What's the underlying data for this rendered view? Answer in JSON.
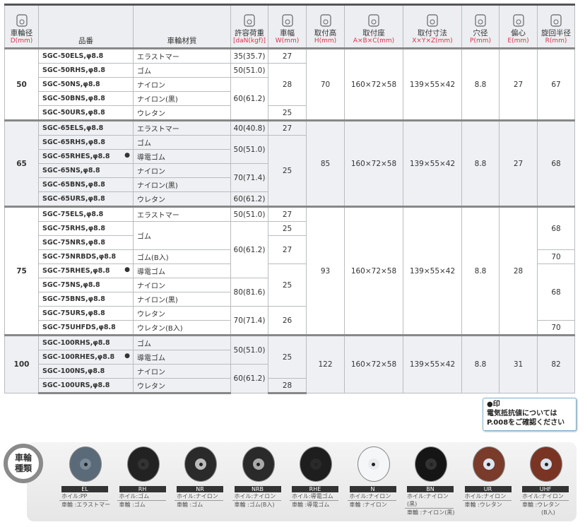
{
  "header": [
    {
      "t": "車輪径",
      "u": "D(mm)",
      "icon": "wheel-diameter-icon"
    },
    {
      "t": "品番",
      "u": ""
    },
    {
      "t": "車輪材質",
      "u": ""
    },
    {
      "t": "許容荷重",
      "u": "[daN(kgf)]",
      "icon": "load-icon"
    },
    {
      "t": "車幅",
      "u": "W(mm)",
      "icon": "wheel-width-icon"
    },
    {
      "t": "取付高",
      "u": "H(mm)",
      "icon": "mount-height-icon"
    },
    {
      "t": "取付座",
      "u": "A×B×C(mm)",
      "icon": "mount-plate-icon"
    },
    {
      "t": "取付寸法",
      "u": "X×Y×Z(mm)",
      "icon": "mount-dimension-icon"
    },
    {
      "t": "穴径",
      "u": "P(mm)",
      "icon": "hole-diameter-icon"
    },
    {
      "t": "偏心",
      "u": "E(mm)",
      "icon": "offset-icon"
    },
    {
      "t": "旋回半径",
      "u": "R(mm)",
      "icon": "swivel-radius-icon"
    }
  ],
  "groups": [
    {
      "gray": false,
      "rows": [
        [
          {
            "t": "50",
            "rs": 5,
            "c": "d"
          },
          {
            "t": "SGC-50ELS,φ8.8",
            "c": "code"
          },
          {
            "t": "エラストマー",
            "c": "mat"
          },
          {
            "t": "35(35.7)"
          },
          {
            "t": "27"
          },
          {
            "t": "70",
            "rs": 5
          },
          {
            "t": "160×72×58",
            "rs": 5
          },
          {
            "t": "139×55×42",
            "rs": 5
          },
          {
            "t": "8.8",
            "rs": 5
          },
          {
            "t": "27",
            "rs": 5
          },
          {
            "t": "67",
            "rs": 5
          }
        ],
        [
          {
            "t": "SGC-50RHS,φ8.8",
            "c": "code"
          },
          {
            "t": "ゴム",
            "c": "mat"
          },
          {
            "t": "50(51.0)"
          },
          {
            "t": "28",
            "rs": 3
          }
        ],
        [
          {
            "t": "SGC-50NS,φ8.8",
            "c": "code"
          },
          {
            "t": "ナイロン",
            "c": "mat"
          },
          {
            "t": "60(61.2)",
            "rs": 3
          }
        ],
        [
          {
            "t": "SGC-50BNS,φ8.8",
            "c": "code"
          },
          {
            "t": "ナイロン(黒)",
            "c": "mat"
          }
        ],
        [
          {
            "t": "SGC-50URS,φ8.8",
            "c": "code"
          },
          {
            "t": "ウレタン",
            "c": "mat"
          },
          {
            "t": "25"
          }
        ]
      ]
    },
    {
      "gray": true,
      "rows": [
        [
          {
            "t": "65",
            "rs": 6,
            "c": "d"
          },
          {
            "t": "SGC-65ELS,φ8.8",
            "c": "code"
          },
          {
            "t": "エラストマー",
            "c": "mat"
          },
          {
            "t": "40(40.8)"
          },
          {
            "t": "27"
          },
          {
            "t": "85",
            "rs": 6
          },
          {
            "t": "160×72×58",
            "rs": 6
          },
          {
            "t": "139×55×42",
            "rs": 6
          },
          {
            "t": "8.8",
            "rs": 6
          },
          {
            "t": "27",
            "rs": 6
          },
          {
            "t": "68",
            "rs": 6
          }
        ],
        [
          {
            "t": "SGC-65RHS,φ8.8",
            "c": "code"
          },
          {
            "t": "ゴム",
            "c": "mat"
          },
          {
            "t": "50(51.0)",
            "rs": 2
          },
          {
            "t": "25",
            "rs": 5
          }
        ],
        [
          {
            "t": "SGC-65RHES,φ8.8",
            "c": "code",
            "dot": "●"
          },
          {
            "t": "導電ゴム",
            "c": "mat"
          }
        ],
        [
          {
            "t": "SGC-65NS,φ8.8",
            "c": "code"
          },
          {
            "t": "ナイロン",
            "c": "mat"
          },
          {
            "t": "70(71.4)",
            "rs": 2
          }
        ],
        [
          {
            "t": "SGC-65BNS,φ8.8",
            "c": "code"
          },
          {
            "t": "ナイロン(黒)",
            "c": "mat"
          }
        ],
        [
          {
            "t": "SGC-65URS,φ8.8",
            "c": "code"
          },
          {
            "t": "ウレタン",
            "c": "mat"
          },
          {
            "t": "60(61.2)"
          }
        ]
      ]
    },
    {
      "gray": false,
      "rows": [
        [
          {
            "t": "75",
            "rs": 9,
            "c": "d"
          },
          {
            "t": "SGC-75ELS,φ8.8",
            "c": "code"
          },
          {
            "t": "エラストマー",
            "c": "mat"
          },
          {
            "t": "50(51.0)"
          },
          {
            "t": "27"
          },
          {
            "t": "93",
            "rs": 9
          },
          {
            "t": "160×72×58",
            "rs": 9
          },
          {
            "t": "139×55×42",
            "rs": 9
          },
          {
            "t": "8.8",
            "rs": 9
          },
          {
            "t": "28",
            "rs": 9
          },
          {
            "t": "68",
            "rs": 3
          }
        ],
        [
          {
            "t": "SGC-75RHS,φ8.8",
            "c": "code"
          },
          {
            "t": "ゴム",
            "c": "mat",
            "rs": 2
          },
          {
            "t": "60(61.2)",
            "rs": 4
          },
          {
            "t": "25"
          }
        ],
        [
          {
            "t": "SGC-75NRS,φ8.8",
            "c": "code"
          },
          {
            "t": "27",
            "rs": 2
          }
        ],
        [
          {
            "t": "SGC-75NRBDS,φ8.8",
            "c": "code"
          },
          {
            "t": "ゴム(B入)",
            "c": "mat"
          },
          {
            "t": "70"
          }
        ],
        [
          {
            "t": "SGC-75RHES,φ8.8",
            "c": "code",
            "dot": "●"
          },
          {
            "t": "導電ゴム",
            "c": "mat"
          },
          {
            "t": "25",
            "rs": 3
          },
          {
            "t": "68",
            "rs": 4
          }
        ],
        [
          {
            "t": "SGC-75NS,φ8.8",
            "c": "code"
          },
          {
            "t": "ナイロン",
            "c": "mat"
          },
          {
            "t": "80(81.6)",
            "rs": 2
          }
        ],
        [
          {
            "t": "SGC-75BNS,φ8.8",
            "c": "code"
          },
          {
            "t": "ナイロン(黒)",
            "c": "mat"
          }
        ],
        [
          {
            "t": "SGC-75URS,φ8.8",
            "c": "code"
          },
          {
            "t": "ウレタン",
            "c": "mat"
          },
          {
            "t": "70(71.4)",
            "rs": 2
          },
          {
            "t": "26",
            "rs": 2
          }
        ],
        [
          {
            "t": "SGC-75UHFDS,φ8.8",
            "c": "code"
          },
          {
            "t": "ウレタン(B入)",
            "c": "mat"
          },
          {
            "t": "70"
          }
        ]
      ]
    },
    {
      "gray": true,
      "rows": [
        [
          {
            "t": "100",
            "rs": 4,
            "c": "d"
          },
          {
            "t": "SGC-100RHS,φ8.8",
            "c": "code"
          },
          {
            "t": "ゴム",
            "c": "mat"
          },
          {
            "t": "50(51.0)",
            "rs": 2
          },
          {
            "t": "25",
            "rs": 3
          },
          {
            "t": "122",
            "rs": 4
          },
          {
            "t": "160×72×58",
            "rs": 4
          },
          {
            "t": "139×55×42",
            "rs": 4
          },
          {
            "t": "8.8",
            "rs": 4
          },
          {
            "t": "31",
            "rs": 4
          },
          {
            "t": "82",
            "rs": 4
          }
        ],
        [
          {
            "t": "SGC-100RHES,φ8.8",
            "c": "code",
            "dot": "●"
          },
          {
            "t": "導電ゴム",
            "c": "mat"
          }
        ],
        [
          {
            "t": "SGC-100NS,φ8.8",
            "c": "code"
          },
          {
            "t": "ナイロン",
            "c": "mat"
          },
          {
            "t": "60(61.2)",
            "rs": 2
          }
        ],
        [
          {
            "t": "SGC-100URS,φ8.8",
            "c": "code"
          },
          {
            "t": "ウレタン",
            "c": "mat"
          },
          {
            "t": "28"
          }
        ]
      ]
    }
  ],
  "note": {
    "l1": "●印",
    "l2": "電気抵抗値については",
    "l3": "P.008をご確認ください"
  },
  "wheel_types": {
    "badge": "車輪\n種類",
    "items": [
      {
        "code": "EL",
        "hub": "ホイル:PP",
        "tread": "車輪 :エラストマー",
        "color": "#5a6a78",
        "hubcolor": "#7a8a98"
      },
      {
        "code": "RH",
        "hub": "ホイル:ゴム",
        "tread": "車輪 :ゴム",
        "color": "#222",
        "hubcolor": "#333"
      },
      {
        "code": "NR",
        "hub": "ホイル:ナイロン",
        "tread": "車輪 :ゴム",
        "color": "#2a2a2a",
        "hubcolor": "#bbb"
      },
      {
        "code": "NRB",
        "hub": "ホイル:ナイロン",
        "tread": "車輪 :ゴム(B入)",
        "color": "#2a2a2a",
        "hubcolor": "#aaa"
      },
      {
        "code": "RHE",
        "hub": "ホイル:導電ゴム",
        "tread": "車輪 :導電ゴム",
        "color": "#1e1e1e",
        "hubcolor": "#2a2a2a"
      },
      {
        "code": "N",
        "hub": "ホイル:ナイロン",
        "tread": "車輪 :ナイロン",
        "color": "#f4f6f8",
        "hubcolor": "#e8ecef"
      },
      {
        "code": "BN",
        "hub": "ホイル:ナイロン(黒)",
        "tread": "車輪 :ナイロン(黒)",
        "color": "#151515",
        "hubcolor": "#333"
      },
      {
        "code": "UR",
        "hub": "ホイル:ナイロン",
        "tread": "車輪 :ウレタン",
        "color": "#7a3b2a",
        "hubcolor": "#dde6f0"
      },
      {
        "code": "UHF",
        "hub": "ホイル:ナイロン",
        "tread": "車輪 :ウレタン",
        "extra": "(B入)",
        "color": "#7a3424",
        "hubcolor": "#d8e2ec"
      }
    ]
  }
}
